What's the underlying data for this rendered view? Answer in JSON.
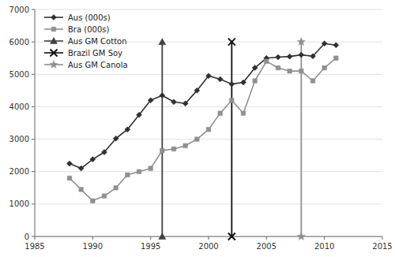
{
  "chart_data": {
    "type": "line",
    "x": [
      1988,
      1989,
      1990,
      1991,
      1992,
      1993,
      1994,
      1995,
      1996,
      1997,
      1998,
      1999,
      2000,
      2001,
      2002,
      2003,
      2004,
      2005,
      2006,
      2007,
      2008,
      2009,
      2010,
      2011
    ],
    "series": [
      {
        "name": "Aus (000s)",
        "color": "#303030",
        "marker": "diamond",
        "line_style": "solid",
        "values": [
          2250,
          2100,
          2380,
          2600,
          3020,
          3300,
          3750,
          4200,
          4350,
          4150,
          4100,
          4500,
          4950,
          4850,
          4700,
          4750,
          5200,
          5500,
          5530,
          5550,
          5600,
          5560,
          5950,
          5900
        ]
      },
      {
        "name": "Bra (000s)",
        "color": "#909090",
        "marker": "square",
        "line_style": "solid",
        "values": [
          1800,
          1450,
          1100,
          1250,
          1500,
          1900,
          2000,
          2100,
          2650,
          2700,
          2800,
          3000,
          3300,
          3800,
          4200,
          3800,
          4800,
          5400,
          5200,
          5100,
          5100,
          4800,
          5200,
          5500
        ]
      },
      {
        "name": "Aus GM Cotton",
        "color": "#404040",
        "marker": "triangle",
        "line_style": "solid",
        "x": [
          1996,
          1996
        ],
        "values": [
          0,
          6000
        ]
      },
      {
        "name": "Brazil GM Soy",
        "color": "#101010",
        "marker": "x",
        "line_style": "solid",
        "x": [
          2002,
          2002
        ],
        "values": [
          0,
          6000
        ]
      },
      {
        "name": "Aus GM Canola",
        "color": "#909090",
        "marker": "star",
        "line_style": "solid",
        "x": [
          2008,
          2008
        ],
        "values": [
          0,
          6000
        ]
      }
    ],
    "xlim": [
      1985,
      2015
    ],
    "ylim": [
      0,
      7000
    ],
    "xticks": [
      1985,
      1990,
      1995,
      2000,
      2005,
      2010,
      2015
    ],
    "yticks": [
      0,
      1000,
      2000,
      3000,
      4000,
      5000,
      6000,
      7000
    ],
    "grid": true,
    "legend": "upper left"
  }
}
